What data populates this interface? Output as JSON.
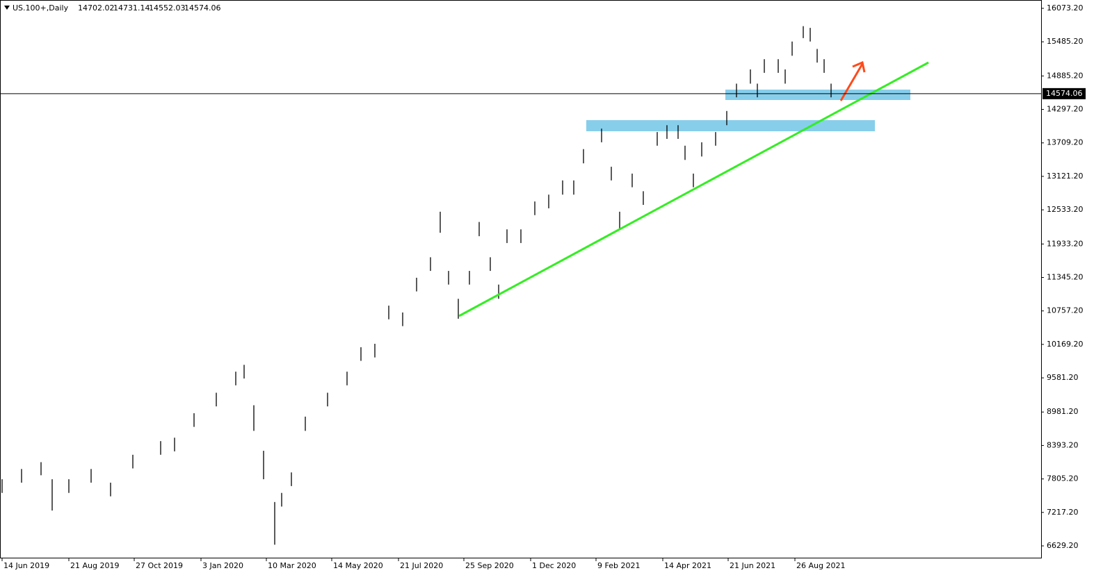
{
  "chart_data": {
    "type": "ohlc",
    "symbol": "US.100+,Daily",
    "header_values": [
      14702.02,
      14731.14,
      14552.03,
      14574.06
    ],
    "last_price": 14574.06,
    "color": "#000000",
    "x": [
      0,
      14,
      28,
      36,
      48,
      64,
      78,
      94,
      114,
      124,
      138,
      154,
      168,
      174,
      181,
      188,
      196,
      201,
      208,
      218,
      234,
      248,
      258,
      268,
      278,
      288,
      298,
      308,
      315,
      321,
      328,
      336,
      343,
      351,
      357,
      363,
      373,
      383,
      393,
      403,
      411,
      418,
      431,
      438,
      444,
      453,
      461,
      471,
      478,
      486,
      491,
      497,
      503,
      513,
      521,
      528,
      538,
      543,
      548,
      558,
      563,
      568,
      576,
      581,
      586,
      591,
      596
    ],
    "high": [
      7800,
      7980,
      8100,
      7800,
      7800,
      7980,
      7740,
      8230,
      8470,
      8530,
      8960,
      9320,
      9690,
      9810,
      9100,
      8300,
      7400,
      7560,
      7920,
      8900,
      9320,
      9690,
      10120,
      10180,
      10850,
      10730,
      11340,
      11700,
      12500,
      11460,
      10970,
      11460,
      12320,
      11700,
      11220,
      12190,
      12190,
      12680,
      12800,
      13050,
      13050,
      13600,
      13960,
      13290,
      12500,
      13170,
      12860,
      13900,
      14020,
      14020,
      13660,
      13170,
      13720,
      13900,
      14270,
      14750,
      15000,
      14750,
      15180,
      15180,
      15000,
      15490,
      15760,
      15730,
      15360,
      15180,
      14750
    ],
    "low": [
      7560,
      7740,
      7870,
      7250,
      7560,
      7740,
      7500,
      7990,
      8230,
      8290,
      8720,
      9080,
      9450,
      9570,
      8650,
      7800,
      6650,
      7320,
      7680,
      8650,
      9080,
      9450,
      9880,
      9940,
      10610,
      10490,
      11100,
      11460,
      12130,
      11220,
      10620,
      11220,
      12070,
      11460,
      10970,
      11950,
      11950,
      12440,
      12560,
      12800,
      12800,
      13350,
      13720,
      13050,
      12200,
      12930,
      12620,
      13660,
      13780,
      13780,
      13410,
      12930,
      13470,
      13660,
      14020,
      14510,
      14750,
      14510,
      14940,
      14940,
      14750,
      15240,
      15550,
      15490,
      15120,
      14940,
      14510
    ],
    "xlim": [
      -1.5,
      747
    ],
    "xticks": [
      {
        "value": 0,
        "label": "14 Jun 2019"
      },
      {
        "value": 48,
        "label": "21 Aug 2019"
      },
      {
        "value": 95,
        "label": "27 Oct 2019"
      },
      {
        "value": 143,
        "label": "3 Jan 2020"
      },
      {
        "value": 190,
        "label": "10 Mar 2020"
      },
      {
        "value": 237,
        "label": "14 May 2020"
      },
      {
        "value": 285,
        "label": "21 Jul 2020"
      },
      {
        "value": 332,
        "label": "25 Sep 2020"
      },
      {
        "value": 380,
        "label": "1 Dec 2020"
      },
      {
        "value": 427,
        "label": "9 Feb 2021"
      },
      {
        "value": 475,
        "label": "14 Apr 2021"
      },
      {
        "value": 522,
        "label": "21 Jun 2021"
      },
      {
        "value": 570,
        "label": "26 Aug 2021"
      }
    ],
    "ylim": [
      6421.8,
      16219.6
    ],
    "yticks": [
      {
        "value": 16073.2,
        "label": "16073.20"
      },
      {
        "value": 15485.2,
        "label": "15485.20"
      },
      {
        "value": 14885.2,
        "label": "14885.20"
      },
      {
        "value": 14297.2,
        "label": "14297.20"
      },
      {
        "value": 13709.2,
        "label": "13709.20"
      },
      {
        "value": 13121.2,
        "label": "13121.20"
      },
      {
        "value": 12533.2,
        "label": "12533.20"
      },
      {
        "value": 11933.2,
        "label": "11933.20"
      },
      {
        "value": 11345.2,
        "label": "11345.20"
      },
      {
        "value": 10757.2,
        "label": "10757.20"
      },
      {
        "value": 10169.2,
        "label": "10169.20"
      },
      {
        "value": 9581.2,
        "label": "9581.20"
      },
      {
        "value": 8981.2,
        "label": "8981.20"
      },
      {
        "value": 8393.2,
        "label": "8393.20"
      },
      {
        "value": 7805.2,
        "label": "7805.20"
      },
      {
        "value": 7217.2,
        "label": "7217.20"
      },
      {
        "value": 6629.2,
        "label": "6629.20"
      }
    ]
  }
}
